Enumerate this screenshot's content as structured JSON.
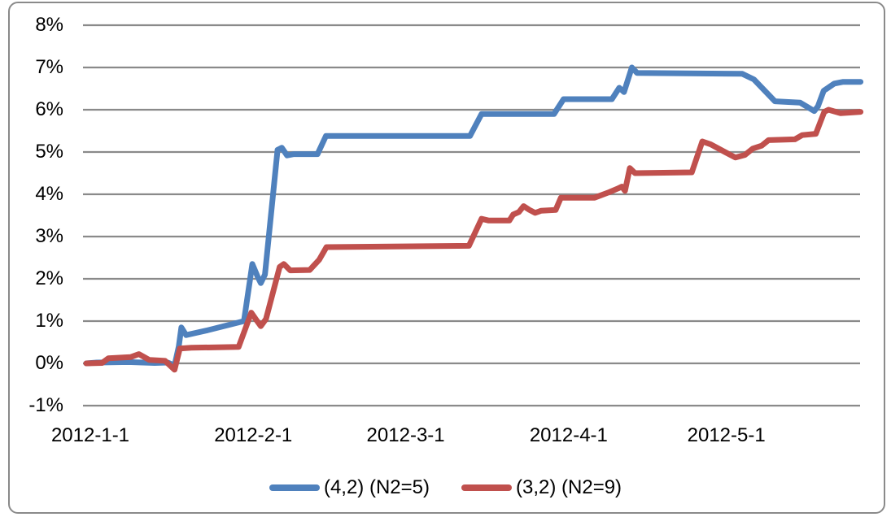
{
  "chart_data": {
    "type": "line",
    "title": "",
    "xlabel": "",
    "ylabel": "",
    "grid": true,
    "legend_position": "bottom",
    "x_axis": {
      "unit": "days since 2012-01-01",
      "range_days": [
        0,
        147.3
      ],
      "ticks": [
        {
          "day": 0,
          "label": "2012-1-1"
        },
        {
          "day": 31,
          "label": "2012-2-1"
        },
        {
          "day": 60,
          "label": "2012-3-1"
        },
        {
          "day": 91,
          "label": "2012-4-1"
        },
        {
          "day": 121,
          "label": "2012-5-1"
        }
      ]
    },
    "y_axis": {
      "unit": "percent",
      "range": [
        -1,
        8
      ],
      "ticks": [
        {
          "value": 8,
          "label": "8%"
        },
        {
          "value": 7,
          "label": "7%"
        },
        {
          "value": 6,
          "label": "6%"
        },
        {
          "value": 5,
          "label": "5%"
        },
        {
          "value": 4,
          "label": "4%"
        },
        {
          "value": 3,
          "label": "3%"
        },
        {
          "value": 2,
          "label": "2%"
        },
        {
          "value": 1,
          "label": "1%"
        },
        {
          "value": 0,
          "label": "0%"
        },
        {
          "value": -1,
          "label": "-1%"
        }
      ]
    },
    "colors": {
      "gridline": "#8a8a8a",
      "frame": "#8a8a8a",
      "series_blue": "#4F81BD",
      "series_red": "#C0504D"
    },
    "series": [
      {
        "id": "series-4-2-n2-5",
        "name": "(4,2) (N2=5)",
        "color": "#4F81BD",
        "points": [
          [
            0,
            0
          ],
          [
            2,
            0.02
          ],
          [
            8,
            0.03
          ],
          [
            13,
            0.01
          ],
          [
            15.5,
            0.02
          ],
          [
            16.8,
            -0.05
          ],
          [
            17.6,
            0.4
          ],
          [
            18.1,
            0.85
          ],
          [
            19,
            0.67
          ],
          [
            23,
            0.78
          ],
          [
            30,
            1.0
          ],
          [
            31.6,
            2.35
          ],
          [
            32.6,
            2.05
          ],
          [
            33.2,
            1.9
          ],
          [
            34,
            2.1
          ],
          [
            36.4,
            5.05
          ],
          [
            37.2,
            5.1
          ],
          [
            38.2,
            4.92
          ],
          [
            39.5,
            4.95
          ],
          [
            44,
            4.95
          ],
          [
            45.6,
            5.38
          ],
          [
            73,
            5.38
          ],
          [
            75.2,
            5.9
          ],
          [
            89,
            5.9
          ],
          [
            90.8,
            6.25
          ],
          [
            100,
            6.25
          ],
          [
            101.4,
            6.52
          ],
          [
            102.3,
            6.42
          ],
          [
            103.8,
            7.0
          ],
          [
            104.8,
            6.87
          ],
          [
            124.8,
            6.85
          ],
          [
            127,
            6.72
          ],
          [
            131,
            6.2
          ],
          [
            135.8,
            6.17
          ],
          [
            138.5,
            5.97
          ],
          [
            139.2,
            6.08
          ],
          [
            140.3,
            6.45
          ],
          [
            142.3,
            6.62
          ],
          [
            144,
            6.66
          ],
          [
            147.3,
            6.66
          ]
        ]
      },
      {
        "id": "series-3-2-n2-9",
        "name": "(3,2) (N2=9)",
        "color": "#C0504D",
        "points": [
          [
            0,
            0
          ],
          [
            3,
            0.01
          ],
          [
            4.2,
            0.12
          ],
          [
            8.5,
            0.15
          ],
          [
            10,
            0.22
          ],
          [
            11,
            0.15
          ],
          [
            12,
            0.08
          ],
          [
            15,
            0.06
          ],
          [
            16.8,
            -0.15
          ],
          [
            17.8,
            0.35
          ],
          [
            20,
            0.37
          ],
          [
            29,
            0.39
          ],
          [
            31.4,
            1.2
          ],
          [
            32.4,
            1.02
          ],
          [
            33.2,
            0.88
          ],
          [
            34.2,
            1.05
          ],
          [
            36.8,
            2.28
          ],
          [
            37.6,
            2.35
          ],
          [
            38.8,
            2.2
          ],
          [
            42.5,
            2.21
          ],
          [
            44.3,
            2.45
          ],
          [
            45.7,
            2.75
          ],
          [
            72.8,
            2.78
          ],
          [
            75.2,
            3.42
          ],
          [
            76.5,
            3.38
          ],
          [
            80.5,
            3.38
          ],
          [
            81.2,
            3.52
          ],
          [
            82.3,
            3.58
          ],
          [
            83.2,
            3.72
          ],
          [
            84.3,
            3.63
          ],
          [
            85.4,
            3.56
          ],
          [
            86.5,
            3.61
          ],
          [
            89.3,
            3.63
          ],
          [
            90.3,
            3.92
          ],
          [
            96.7,
            3.92
          ],
          [
            99.5,
            4.05
          ],
          [
            101.2,
            4.14
          ],
          [
            101.9,
            4.18
          ],
          [
            102.5,
            4.08
          ],
          [
            103.4,
            4.62
          ],
          [
            104.4,
            4.5
          ],
          [
            115.2,
            4.52
          ],
          [
            117.2,
            5.25
          ],
          [
            118.8,
            5.18
          ],
          [
            121.5,
            5.0
          ],
          [
            123.5,
            4.87
          ],
          [
            125.3,
            4.93
          ],
          [
            126.8,
            5.08
          ],
          [
            128.5,
            5.15
          ],
          [
            129.8,
            5.28
          ],
          [
            134.8,
            5.3
          ],
          [
            136.2,
            5.4
          ],
          [
            138.8,
            5.43
          ],
          [
            140.4,
            5.95
          ],
          [
            141.2,
            6.0
          ],
          [
            143.5,
            5.92
          ],
          [
            147.3,
            5.95
          ]
        ]
      }
    ]
  }
}
